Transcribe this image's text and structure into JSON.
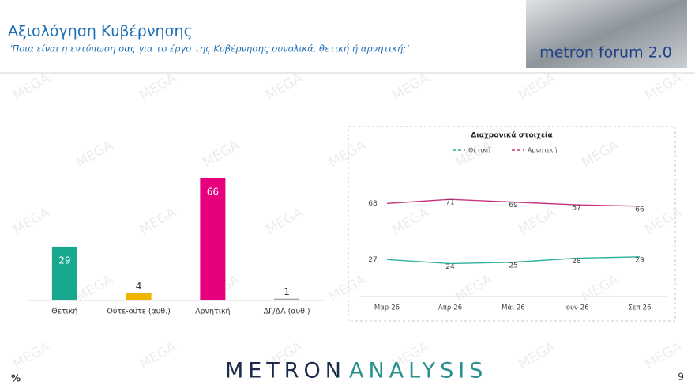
{
  "header": {
    "title": "Αξιολόγηση Κυβέρνησης",
    "subtitle": "‘Ποια είναι η εντύπωση σας για το έργο της Κυβέρνησης συνολικά, θετική ή αρνητική;’",
    "logo": "metron forum 2.0"
  },
  "watermark": "MEGA",
  "chart_data": [
    {
      "type": "bar",
      "categories": [
        "Θετική",
        "Ούτε-ούτε (αυθ.)",
        "Αρνητική",
        "ΔΓ/ΔΑ (αυθ.)"
      ],
      "values": [
        29,
        4,
        66,
        1
      ],
      "colors": [
        "#17a88e",
        "#f0b400",
        "#e6007e",
        "#a6a6a6"
      ]
    },
    {
      "type": "line",
      "title": "Διαχρονικά στοιχεία",
      "categories": [
        "Μαρ-26",
        "Απρ-26",
        "Μάι-26",
        "Ιουν-26",
        "Σεπ-26"
      ],
      "ylim": [
        0,
        100
      ],
      "series": [
        {
          "name": "Θετική",
          "color": "#2ab39a",
          "values": [
            27,
            24,
            25,
            28,
            29
          ]
        },
        {
          "name": "Αρνητική",
          "color": "#c8337f",
          "values": [
            68,
            71,
            69,
            67,
            66
          ]
        }
      ]
    }
  ],
  "footer": {
    "brand_1": "METRON",
    "brand_2": "ANALYSIS",
    "unit": "%",
    "page": 9
  }
}
